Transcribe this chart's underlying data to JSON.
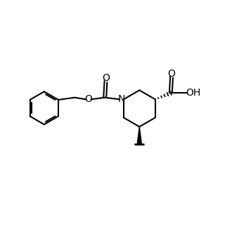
{
  "background_color": "#ffffff",
  "line_color": "#000000",
  "line_width": 1.5,
  "font_size": 10,
  "figure_size": [
    3.3,
    3.3
  ],
  "dpi": 100,
  "xlim": [
    0,
    10
  ],
  "ylim": [
    0,
    10
  ]
}
